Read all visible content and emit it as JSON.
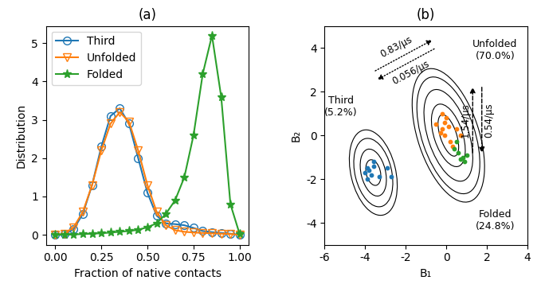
{
  "chart_data": [
    {
      "type": "line",
      "title": "(a)",
      "x_label": "Fraction of native contacts",
      "y_label": "Distribution",
      "x": [
        0.0,
        0.05,
        0.1,
        0.15,
        0.2,
        0.25,
        0.3,
        0.35,
        0.4,
        0.45,
        0.5,
        0.55,
        0.6,
        0.65,
        0.7,
        0.75,
        0.8,
        0.85,
        0.9,
        0.95,
        1.0
      ],
      "series": [
        {
          "name": "Third",
          "color": "#1f77b4",
          "marker": "circle",
          "line_style": "solid",
          "values": [
            0.0,
            0.02,
            0.15,
            0.55,
            1.3,
            2.3,
            3.1,
            3.3,
            2.9,
            2.0,
            1.1,
            0.5,
            0.3,
            0.28,
            0.25,
            0.18,
            0.1,
            0.07,
            0.05,
            0.03,
            0.0
          ]
        },
        {
          "name": "Unfolded",
          "color": "#ff7f0e",
          "marker": "triangle_down",
          "line_style": "solid",
          "values": [
            0.0,
            0.03,
            0.2,
            0.6,
            1.3,
            2.2,
            2.9,
            3.2,
            2.95,
            2.2,
            1.3,
            0.6,
            0.25,
            0.12,
            0.08,
            0.06,
            0.05,
            0.04,
            0.03,
            0.02,
            0.0
          ]
        },
        {
          "name": "Folded",
          "color": "#2ca02c",
          "marker": "star",
          "line_style": "solid",
          "values": [
            0.0,
            0.0,
            0.01,
            0.02,
            0.03,
            0.04,
            0.06,
            0.08,
            0.1,
            0.13,
            0.2,
            0.3,
            0.55,
            0.9,
            1.5,
            2.6,
            4.2,
            5.2,
            3.6,
            0.8,
            0.02
          ]
        }
      ],
      "xlim": [
        -0.05,
        1.05
      ],
      "xticks": [
        {
          "value": 0.0,
          "label": "0.00"
        },
        {
          "value": 0.25,
          "label": "0.25"
        },
        {
          "value": 0.5,
          "label": "0.50"
        },
        {
          "value": 0.75,
          "label": "0.75"
        },
        {
          "value": 1.0,
          "label": "1.00"
        }
      ],
      "ylim": [
        -0.26,
        5.45
      ],
      "yticks": [
        0,
        1,
        2,
        3,
        4,
        5
      ],
      "legend": "upper left"
    },
    {
      "type": "scatter",
      "title": "(b)",
      "x_label": "B₁",
      "y_label": "B₂",
      "series": [
        {
          "name": "Third",
          "population": "(5.2%)",
          "color": "#1f77b4",
          "x": [
            -3.9,
            -3.7,
            -3.8,
            -3.6,
            -3.9,
            -3.3,
            -2.9,
            -2.7,
            -3.6,
            -4.0
          ],
          "y": [
            -1.5,
            -1.8,
            -1.6,
            -1.4,
            -2.0,
            -1.9,
            -1.5,
            -1.9,
            -1.2,
            -1.7
          ]
        },
        {
          "name": "Unfolded",
          "population": "(70.0%)",
          "color": "#ff7f0e",
          "x": [
            -0.1,
            -0.2,
            0.0,
            -0.3,
            0.1,
            -0.1,
            0.2,
            -0.2,
            0.5,
            0.7,
            0.3,
            -0.5
          ],
          "y": [
            0.6,
            0.3,
            0.8,
            0.1,
            0.4,
            0.0,
            -0.3,
            1.0,
            0.3,
            0.0,
            -0.5,
            0.5
          ]
        },
        {
          "name": "Folded",
          "population": "(24.8%)",
          "color": "#2ca02c",
          "x": [
            0.8,
            0.9,
            0.6,
            1.0,
            0.7,
            0.4,
            0.5
          ],
          "y": [
            -1.0,
            -1.2,
            -0.8,
            -0.9,
            -1.1,
            -0.6,
            -0.3
          ]
        }
      ],
      "contours": [
        {
          "center": [
            -3.6,
            -1.7
          ],
          "angle": 15,
          "radii": [
            [
              0.35,
              0.6
            ],
            [
              0.6,
              1.1
            ],
            [
              0.9,
              1.6
            ],
            [
              1.1,
              2.0
            ]
          ]
        },
        {
          "center": [
            0.1,
            0.0
          ],
          "angle": 20,
          "radii": [
            [
              0.4,
              1.0
            ],
            [
              0.7,
              1.5
            ],
            [
              1.0,
              2.2
            ],
            [
              1.3,
              2.8
            ],
            [
              1.5,
              3.2
            ]
          ]
        }
      ],
      "transitions": [
        {
          "from": "Third",
          "to": "Unfolded",
          "rate": "0.83/μs"
        },
        {
          "from": "Unfolded",
          "to": "Third",
          "rate": "0.056/μs"
        },
        {
          "from": "Folded",
          "to": "Unfolded",
          "rate": "1.54/μs"
        },
        {
          "from": "Unfolded",
          "to": "Folded",
          "rate": "0.54/μs"
        }
      ],
      "xlim": [
        -6,
        4
      ],
      "xticks": [
        -6,
        -4,
        -2,
        0,
        2,
        4
      ],
      "ylim": [
        -5,
        5
      ],
      "yticks": [
        -4,
        -2,
        0,
        2,
        4
      ]
    }
  ]
}
